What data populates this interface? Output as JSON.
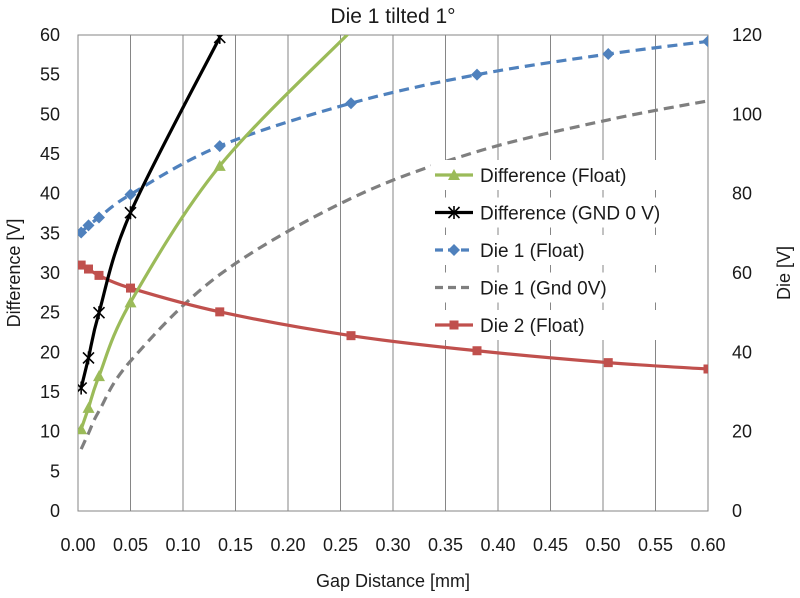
{
  "chart_data": {
    "type": "line",
    "title": "Die 1 tilted 1°",
    "xlabel": "Gap Distance [mm]",
    "ylabel": "Difference [V]",
    "y2label": "Die [V]",
    "xlim": [
      0,
      0.6
    ],
    "ylim": [
      0,
      60
    ],
    "y2lim": [
      0,
      120
    ],
    "xticks": [
      "0.00",
      "0.05",
      "0.10",
      "0.15",
      "0.20",
      "0.25",
      "0.30",
      "0.35",
      "0.40",
      "0.45",
      "0.50",
      "0.55",
      "0.60"
    ],
    "yticks": [
      "0",
      "5",
      "10",
      "15",
      "20",
      "25",
      "30",
      "35",
      "40",
      "45",
      "50",
      "55",
      "60"
    ],
    "y2ticks": [
      "0",
      "20",
      "40",
      "60",
      "80",
      "100",
      "120"
    ],
    "grid": "vertical",
    "legend_position": "center-right",
    "series": [
      {
        "name": "Difference (Float)",
        "axis": "left",
        "color": "#9bbb59",
        "dash": "solid",
        "marker": "triangle",
        "x": [
          0.003,
          0.01,
          0.02,
          0.05,
          0.135,
          0.26
        ],
        "y": [
          10.3,
          13.0,
          17.0,
          26.3,
          43.5,
          60.5
        ]
      },
      {
        "name": "Difference (GND 0 V)",
        "axis": "left",
        "color": "#000000",
        "dash": "solid",
        "marker": "star",
        "x": [
          0.003,
          0.01,
          0.02,
          0.05,
          0.135
        ],
        "y": [
          15.5,
          19.3,
          25.0,
          37.6,
          59.7
        ]
      },
      {
        "name": "Die 1 (Float)",
        "axis": "right",
        "color": "#4f81bd",
        "dash": "dashed",
        "marker": "diamond",
        "x": [
          0.003,
          0.01,
          0.02,
          0.05,
          0.135,
          0.26,
          0.38,
          0.505,
          0.6
        ],
        "y": [
          70.2,
          72.0,
          74.0,
          79.8,
          92.0,
          102.8,
          110.0,
          115.2,
          118.4
        ]
      },
      {
        "name": "Die 1 (Gnd 0V)",
        "axis": "right",
        "color": "#7f7f7f",
        "dash": "dashed",
        "marker": "none",
        "x": [
          0.003,
          0.01,
          0.02,
          0.05,
          0.135,
          0.26,
          0.38,
          0.505,
          0.6
        ],
        "y": [
          15.6,
          19.6,
          25.2,
          37.8,
          59.6,
          78.8,
          90.6,
          98.6,
          103.4
        ]
      },
      {
        "name": "Die 2 (Float)",
        "axis": "left",
        "color": "#c0504d",
        "dash": "solid",
        "marker": "square",
        "x": [
          0.003,
          0.01,
          0.02,
          0.05,
          0.135,
          0.26,
          0.38,
          0.505,
          0.6
        ],
        "y": [
          31.0,
          30.5,
          29.7,
          28.1,
          25.1,
          22.1,
          20.2,
          18.7,
          17.9
        ]
      }
    ]
  }
}
